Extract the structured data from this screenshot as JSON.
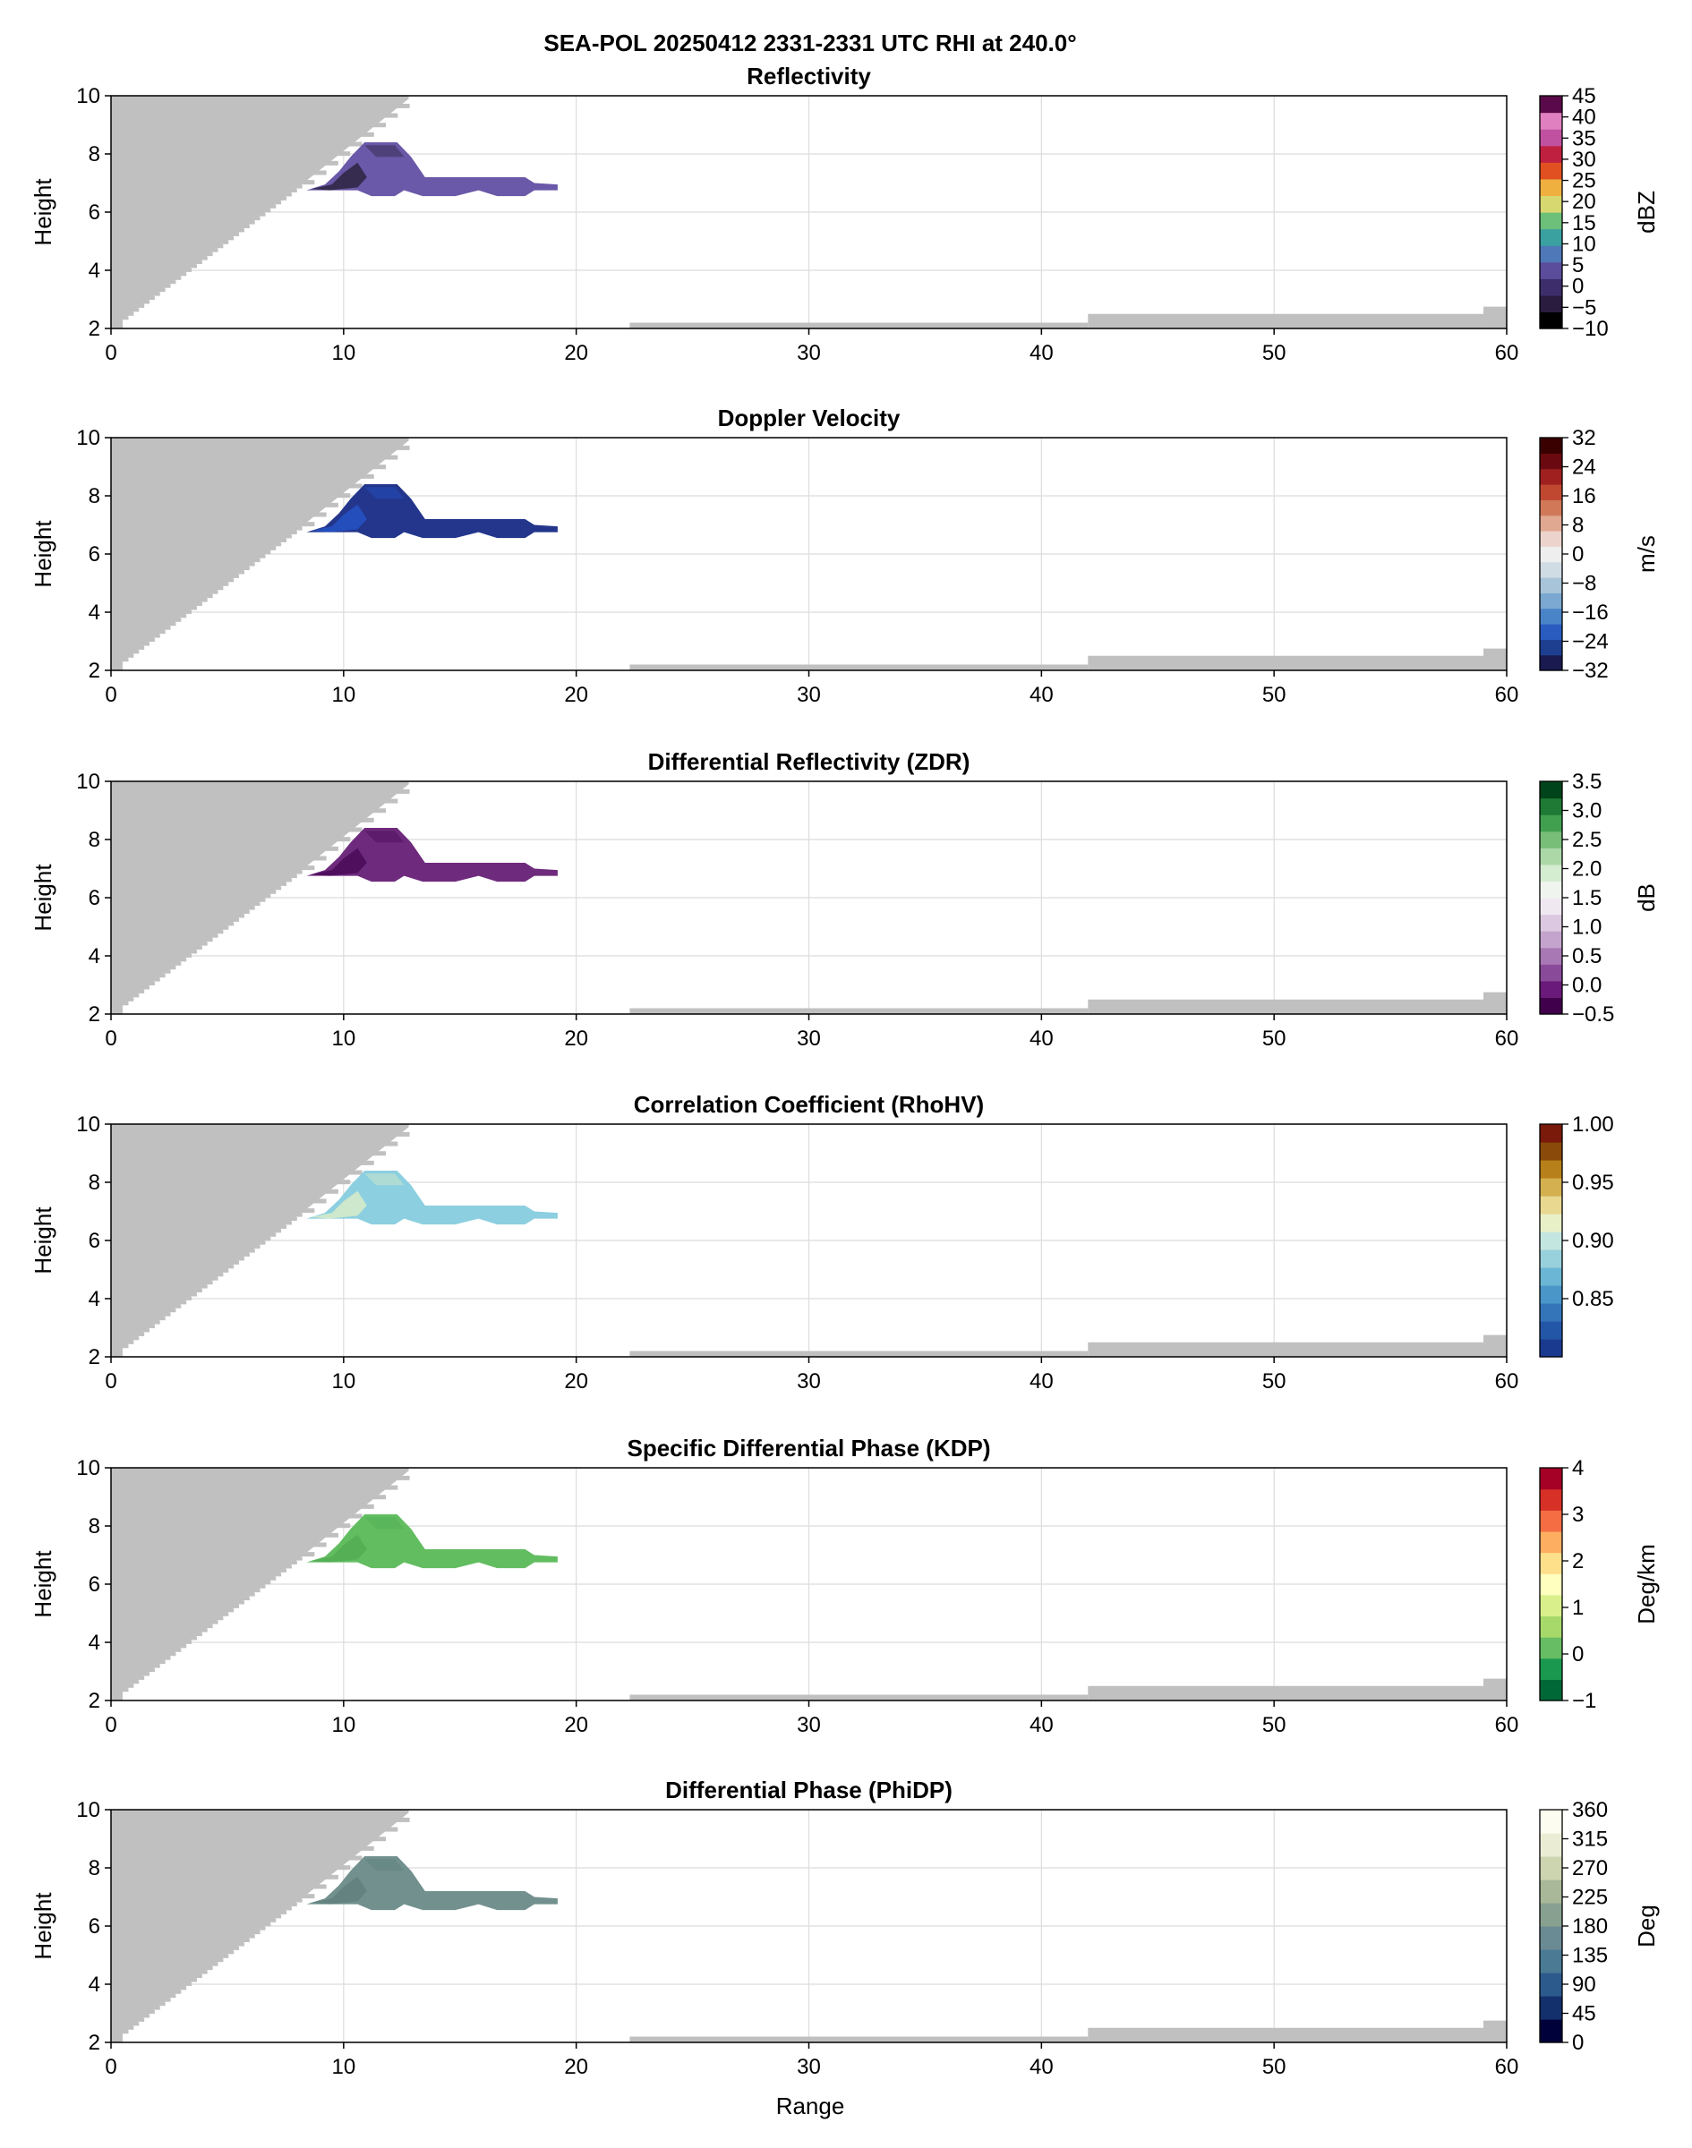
{
  "figure": {
    "title": "SEA-POL 20250412 2331-2331 UTC RHI at 240.0°",
    "xlabel": "Range"
  },
  "chart_data": [
    {
      "type": "heatmap",
      "title": "Reflectivity",
      "ylabel": "Height",
      "xlim": [
        0,
        60
      ],
      "ylim": [
        2,
        10
      ],
      "xticks": [
        0,
        10,
        20,
        30,
        40,
        50,
        60
      ],
      "yticks": [
        2,
        4,
        6,
        8,
        10
      ],
      "grid": true,
      "colorbar": {
        "label": "dBZ",
        "range": [
          -10,
          45
        ],
        "ticks": [
          -10,
          -5,
          0,
          5,
          10,
          15,
          20,
          25,
          30,
          35,
          40,
          45
        ],
        "tick_labels": [
          "−10",
          "−5",
          "0",
          "5",
          "10",
          "15",
          "20",
          "25",
          "30",
          "35",
          "40",
          "45"
        ],
        "colors": [
          "#000000",
          "#2a1c3f",
          "#3d2d6b",
          "#5c4c9c",
          "#4f78b8",
          "#3aa0a0",
          "#6cc07a",
          "#d8d870",
          "#f0b040",
          "#e05020",
          "#c02040",
          "#c050a0",
          "#e080c0",
          "#5a0a4a"
        ]
      },
      "echo_color": "#6a58a8",
      "echo_dark_color": "#2c2440",
      "echo_region": [
        [
          8.4,
          6.75
        ],
        [
          9.2,
          6.95
        ],
        [
          9.8,
          7.4
        ],
        [
          10.3,
          7.9
        ],
        [
          10.9,
          8.4
        ],
        [
          12.3,
          8.4
        ],
        [
          12.9,
          7.9
        ],
        [
          13.5,
          7.2
        ],
        [
          17.8,
          7.2
        ],
        [
          18.2,
          7.0
        ],
        [
          19.2,
          6.95
        ],
        [
          19.2,
          6.75
        ],
        [
          18.2,
          6.75
        ],
        [
          17.8,
          6.55
        ],
        [
          16.6,
          6.55
        ],
        [
          15.8,
          6.75
        ],
        [
          14.8,
          6.55
        ],
        [
          13.4,
          6.55
        ],
        [
          12.6,
          6.75
        ],
        [
          12.2,
          6.55
        ],
        [
          11.2,
          6.55
        ],
        [
          10.6,
          6.75
        ]
      ]
    },
    {
      "type": "heatmap",
      "title": "Doppler Velocity",
      "ylabel": "Height",
      "xlim": [
        0,
        60
      ],
      "ylim": [
        2,
        10
      ],
      "xticks": [
        0,
        10,
        20,
        30,
        40,
        50,
        60
      ],
      "yticks": [
        2,
        4,
        6,
        8,
        10
      ],
      "grid": true,
      "colorbar": {
        "label": "m/s",
        "range": [
          -32,
          32
        ],
        "ticks": [
          -32,
          -24,
          -16,
          -8,
          0,
          8,
          16,
          24,
          32
        ],
        "tick_labels": [
          "−32",
          "−24",
          "−16",
          "−8",
          "0",
          "8",
          "16",
          "24",
          "32"
        ],
        "colors": [
          "#1a1a50",
          "#1e3e90",
          "#2a5cc0",
          "#4a84c8",
          "#7aa8d0",
          "#a8c4d8",
          "#d0dce4",
          "#eeeeee",
          "#ecd4cc",
          "#e0a890",
          "#d07858",
          "#c04830",
          "#a02020",
          "#6a0a10",
          "#3a0000"
        ]
      },
      "echo_color": "#23368c",
      "echo_dark_color": "#2452c4",
      "echo_region": [
        [
          8.4,
          6.75
        ],
        [
          9.2,
          6.95
        ],
        [
          9.8,
          7.4
        ],
        [
          10.3,
          7.9
        ],
        [
          10.9,
          8.4
        ],
        [
          12.3,
          8.4
        ],
        [
          12.9,
          7.9
        ],
        [
          13.5,
          7.2
        ],
        [
          17.8,
          7.2
        ],
        [
          18.2,
          7.0
        ],
        [
          19.2,
          6.95
        ],
        [
          19.2,
          6.75
        ],
        [
          18.2,
          6.75
        ],
        [
          17.8,
          6.55
        ],
        [
          16.6,
          6.55
        ],
        [
          15.8,
          6.75
        ],
        [
          14.8,
          6.55
        ],
        [
          13.4,
          6.55
        ],
        [
          12.6,
          6.75
        ],
        [
          12.2,
          6.55
        ],
        [
          11.2,
          6.55
        ],
        [
          10.6,
          6.75
        ]
      ]
    },
    {
      "type": "heatmap",
      "title": "Differential Reflectivity (ZDR)",
      "ylabel": "Height",
      "xlim": [
        0,
        60
      ],
      "ylim": [
        2,
        10
      ],
      "xticks": [
        0,
        10,
        20,
        30,
        40,
        50,
        60
      ],
      "yticks": [
        2,
        4,
        6,
        8,
        10
      ],
      "grid": true,
      "colorbar": {
        "label": "dB",
        "range": [
          -0.5,
          3.5
        ],
        "ticks": [
          -0.5,
          0.0,
          0.5,
          1.0,
          1.5,
          2.0,
          2.5,
          3.0,
          3.5
        ],
        "tick_labels": [
          "−0.5",
          "0.0",
          "0.5",
          "1.0",
          "1.5",
          "2.0",
          "2.5",
          "3.0",
          "3.5"
        ],
        "colors": [
          "#40004b",
          "#6a1a7a",
          "#8a4a9a",
          "#a878b4",
          "#c4a4cc",
          "#dcc8e0",
          "#f0e8f0",
          "#f0f4ee",
          "#d4ecd0",
          "#acd8a8",
          "#78be78",
          "#40a050",
          "#1e7a34",
          "#00441b"
        ]
      },
      "echo_color": "#6e2a7c",
      "echo_dark_color": "#4a0a58",
      "echo_region": [
        [
          8.4,
          6.75
        ],
        [
          9.2,
          6.95
        ],
        [
          9.8,
          7.4
        ],
        [
          10.3,
          7.9
        ],
        [
          10.9,
          8.4
        ],
        [
          12.3,
          8.4
        ],
        [
          12.9,
          7.9
        ],
        [
          13.5,
          7.2
        ],
        [
          17.8,
          7.2
        ],
        [
          18.2,
          7.0
        ],
        [
          19.2,
          6.95
        ],
        [
          19.2,
          6.75
        ],
        [
          18.2,
          6.75
        ],
        [
          17.8,
          6.55
        ],
        [
          16.6,
          6.55
        ],
        [
          15.8,
          6.75
        ],
        [
          14.8,
          6.55
        ],
        [
          13.4,
          6.55
        ],
        [
          12.6,
          6.75
        ],
        [
          12.2,
          6.55
        ],
        [
          11.2,
          6.55
        ],
        [
          10.6,
          6.75
        ]
      ]
    },
    {
      "type": "heatmap",
      "title": "Correlation Coefficient (RhoHV)",
      "ylabel": "Height",
      "xlim": [
        0,
        60
      ],
      "ylim": [
        2,
        10
      ],
      "xticks": [
        0,
        10,
        20,
        30,
        40,
        50,
        60
      ],
      "yticks": [
        2,
        4,
        6,
        8,
        10
      ],
      "grid": true,
      "colorbar": {
        "label": "",
        "range": [
          0.8,
          1.0
        ],
        "ticks": [
          0.85,
          0.9,
          0.95,
          1.0
        ],
        "tick_labels": [
          "0.85",
          "0.90",
          "0.95",
          "1.00"
        ],
        "colors": [
          "#1a3a90",
          "#2456a8",
          "#3474b8",
          "#4a96c8",
          "#6ab6d4",
          "#98d0dc",
          "#c4e6e0",
          "#e8f0c8",
          "#e8d890",
          "#d4b050",
          "#b8801a",
          "#8a4a0a",
          "#7a1a0a"
        ]
      },
      "echo_color": "#8ccfe0",
      "echo_dark_color": "#d8ecc8",
      "echo_region": [
        [
          8.4,
          6.75
        ],
        [
          9.2,
          6.95
        ],
        [
          9.8,
          7.4
        ],
        [
          10.3,
          7.9
        ],
        [
          10.9,
          8.4
        ],
        [
          12.3,
          8.4
        ],
        [
          12.9,
          7.9
        ],
        [
          13.5,
          7.2
        ],
        [
          17.8,
          7.2
        ],
        [
          18.2,
          7.0
        ],
        [
          19.2,
          6.95
        ],
        [
          19.2,
          6.75
        ],
        [
          18.2,
          6.75
        ],
        [
          17.8,
          6.55
        ],
        [
          16.6,
          6.55
        ],
        [
          15.8,
          6.75
        ],
        [
          14.8,
          6.55
        ],
        [
          13.4,
          6.55
        ],
        [
          12.6,
          6.75
        ],
        [
          12.2,
          6.55
        ],
        [
          11.2,
          6.55
        ],
        [
          10.6,
          6.75
        ]
      ]
    },
    {
      "type": "heatmap",
      "title": "Specific Differential Phase (KDP)",
      "ylabel": "Height",
      "xlim": [
        0,
        60
      ],
      "ylim": [
        2,
        10
      ],
      "xticks": [
        0,
        10,
        20,
        30,
        40,
        50,
        60
      ],
      "yticks": [
        2,
        4,
        6,
        8,
        10
      ],
      "grid": true,
      "colorbar": {
        "label": "Deg/km",
        "range": [
          -1,
          4
        ],
        "ticks": [
          -1,
          0,
          1,
          2,
          3,
          4
        ],
        "tick_labels": [
          "−1",
          "0",
          "1",
          "2",
          "3",
          "4"
        ],
        "colors": [
          "#006837",
          "#1a9850",
          "#66bd63",
          "#a6d96a",
          "#d9ef8b",
          "#ffffbf",
          "#fee08b",
          "#fdae61",
          "#f46d43",
          "#d73027",
          "#a50026"
        ]
      },
      "echo_color": "#62bd60",
      "echo_dark_color": "#52ad54",
      "echo_region": [
        [
          8.4,
          6.75
        ],
        [
          9.2,
          6.95
        ],
        [
          9.8,
          7.4
        ],
        [
          10.3,
          7.9
        ],
        [
          10.9,
          8.4
        ],
        [
          12.3,
          8.4
        ],
        [
          12.9,
          7.9
        ],
        [
          13.5,
          7.2
        ],
        [
          17.8,
          7.2
        ],
        [
          18.2,
          7.0
        ],
        [
          19.2,
          6.95
        ],
        [
          19.2,
          6.75
        ],
        [
          18.2,
          6.75
        ],
        [
          17.8,
          6.55
        ],
        [
          16.6,
          6.55
        ],
        [
          15.8,
          6.75
        ],
        [
          14.8,
          6.55
        ],
        [
          13.4,
          6.55
        ],
        [
          12.6,
          6.75
        ],
        [
          12.2,
          6.55
        ],
        [
          11.2,
          6.55
        ],
        [
          10.6,
          6.75
        ]
      ]
    },
    {
      "type": "heatmap",
      "title": "Differential Phase (PhiDP)",
      "ylabel": "Height",
      "xlim": [
        0,
        60
      ],
      "ylim": [
        2,
        10
      ],
      "xticks": [
        0,
        10,
        20,
        30,
        40,
        50,
        60
      ],
      "yticks": [
        2,
        4,
        6,
        8,
        10
      ],
      "grid": true,
      "colorbar": {
        "label": "Deg",
        "range": [
          0,
          360
        ],
        "ticks": [
          0,
          45,
          90,
          135,
          180,
          225,
          270,
          315,
          360
        ],
        "tick_labels": [
          "0",
          "45",
          "90",
          "135",
          "180",
          "225",
          "270",
          "315",
          "360"
        ],
        "colors": [
          "#00003a",
          "#14306c",
          "#2c5a8c",
          "#4a7a94",
          "#6a8a94",
          "#88a090",
          "#a8b898",
          "#ccd4b0",
          "#eaecd4",
          "#fcfcf0"
        ]
      },
      "echo_color": "#72908e",
      "echo_dark_color": "#60807e",
      "echo_region": [
        [
          8.4,
          6.75
        ],
        [
          9.2,
          6.95
        ],
        [
          9.8,
          7.4
        ],
        [
          10.3,
          7.9
        ],
        [
          10.9,
          8.4
        ],
        [
          12.3,
          8.4
        ],
        [
          12.9,
          7.9
        ],
        [
          13.5,
          7.2
        ],
        [
          17.8,
          7.2
        ],
        [
          18.2,
          7.0
        ],
        [
          19.2,
          6.95
        ],
        [
          19.2,
          6.75
        ],
        [
          18.2,
          6.75
        ],
        [
          17.8,
          6.55
        ],
        [
          16.6,
          6.55
        ],
        [
          15.8,
          6.75
        ],
        [
          14.8,
          6.55
        ],
        [
          13.4,
          6.55
        ],
        [
          12.6,
          6.75
        ],
        [
          12.2,
          6.55
        ],
        [
          11.2,
          6.55
        ],
        [
          10.6,
          6.75
        ]
      ]
    }
  ],
  "blocked_beam": {
    "color": "#c0c0c0",
    "upper_wedge": [
      [
        0,
        2
      ],
      [
        0,
        10
      ],
      [
        12.8,
        10
      ],
      [
        12.8,
        9.9
      ],
      [
        8.2,
        6.95
      ],
      [
        0.5,
        2.3
      ],
      [
        0.5,
        2
      ]
    ],
    "ground_segments": [
      {
        "x": [
          22.3,
          42.0
        ],
        "top": 2.2
      },
      {
        "x": [
          42.0,
          59.0
        ],
        "top": 2.5
      },
      {
        "x": [
          59.0,
          60.0
        ],
        "top": 2.75
      }
    ]
  }
}
